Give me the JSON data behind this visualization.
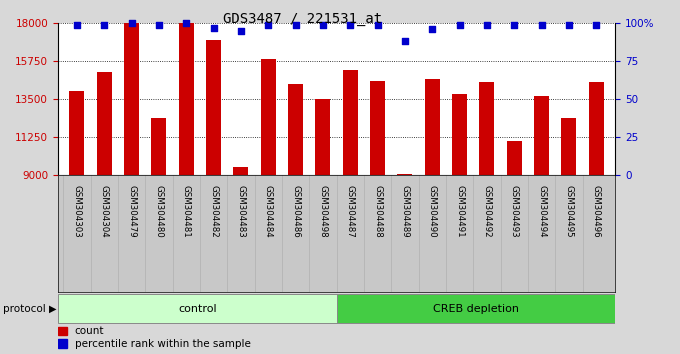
{
  "title": "GDS3487 / 221531_at",
  "categories": [
    "GSM304303",
    "GSM304304",
    "GSM304479",
    "GSM304480",
    "GSM304481",
    "GSM304482",
    "GSM304483",
    "GSM304484",
    "GSM304486",
    "GSM304498",
    "GSM304487",
    "GSM304488",
    "GSM304489",
    "GSM304490",
    "GSM304491",
    "GSM304492",
    "GSM304493",
    "GSM304494",
    "GSM304495",
    "GSM304496"
  ],
  "bar_values": [
    14000,
    15100,
    18000,
    12400,
    18000,
    17000,
    9500,
    15900,
    14400,
    13500,
    15200,
    14600,
    9100,
    14700,
    13800,
    14500,
    11000,
    13700,
    12400,
    14500
  ],
  "percentile_values": [
    99,
    99,
    100,
    99,
    100,
    97,
    95,
    99,
    99,
    99,
    99,
    99,
    88,
    96,
    99,
    99,
    99,
    99,
    99,
    99
  ],
  "bar_color": "#cc0000",
  "dot_color": "#0000cc",
  "ylim_left": [
    9000,
    18000
  ],
  "ylim_right": [
    0,
    100
  ],
  "yticks_left": [
    9000,
    11250,
    13500,
    15750,
    18000
  ],
  "yticks_right": [
    0,
    25,
    50,
    75,
    100
  ],
  "control_count": 10,
  "control_label": "control",
  "creb_label": "CREB depletion",
  "protocol_label": "protocol",
  "legend_count_label": "count",
  "legend_percentile_label": "percentile rank within the sample",
  "fig_bg_color": "#d8d8d8",
  "plot_bg_color": "#ffffff",
  "xlabel_bg_color": "#c8c8c8",
  "control_bg": "#ccffcc",
  "creb_bg": "#44cc44",
  "bar_width": 0.55
}
